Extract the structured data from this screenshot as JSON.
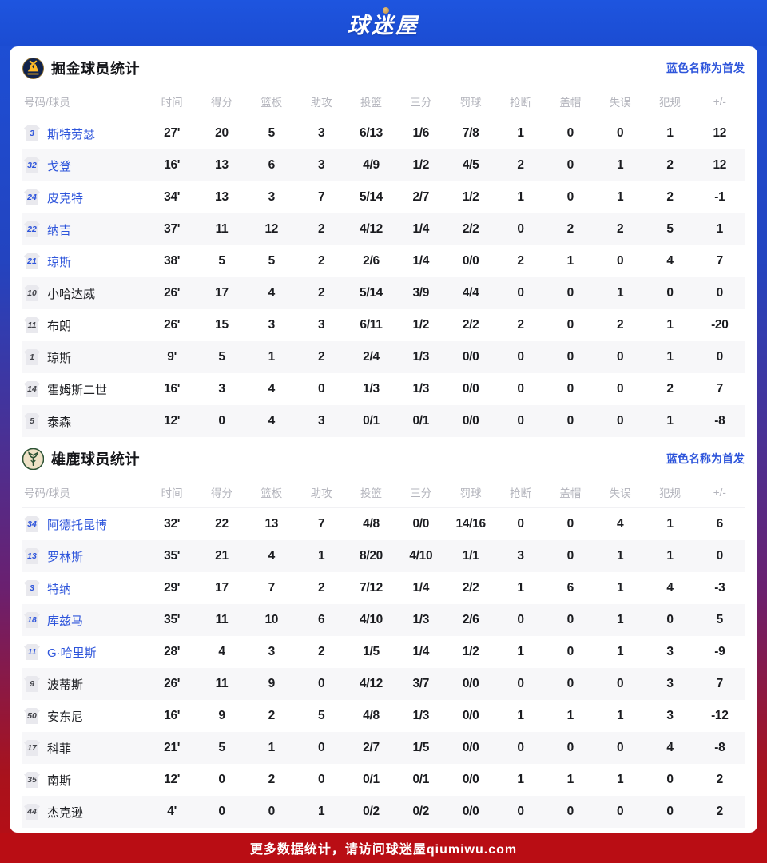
{
  "header": {
    "logo_text": "球迷屋"
  },
  "colors": {
    "accent_blue": "#2e55db",
    "banner_blue": "#1b4cd2",
    "footer_red": "#b90d14",
    "nuggets_navy": "#10224b",
    "nuggets_gold": "#fdb927",
    "bucks_green": "#2c5234",
    "bucks_cream": "#eee1c6"
  },
  "columns": [
    "号码/球员",
    "时间",
    "得分",
    "篮板",
    "助攻",
    "投篮",
    "三分",
    "罚球",
    "抢断",
    "盖帽",
    "失误",
    "犯规",
    "+/-"
  ],
  "tables": [
    {
      "team": "nuggets",
      "title": "掘金球员统计",
      "legend": "蓝色名称为首发",
      "players": [
        {
          "num": "3",
          "name": "斯特劳瑟",
          "starter": true,
          "stats": [
            "27'",
            "20",
            "5",
            "3",
            "6/13",
            "1/6",
            "7/8",
            "1",
            "0",
            "0",
            "1",
            "12"
          ]
        },
        {
          "num": "32",
          "name": "戈登",
          "starter": true,
          "stats": [
            "16'",
            "13",
            "6",
            "3",
            "4/9",
            "1/2",
            "4/5",
            "2",
            "0",
            "1",
            "2",
            "12"
          ]
        },
        {
          "num": "24",
          "name": "皮克特",
          "starter": true,
          "stats": [
            "34'",
            "13",
            "3",
            "7",
            "5/14",
            "2/7",
            "1/2",
            "1",
            "0",
            "1",
            "2",
            "-1"
          ]
        },
        {
          "num": "22",
          "name": "纳吉",
          "starter": true,
          "stats": [
            "37'",
            "11",
            "12",
            "2",
            "4/12",
            "1/4",
            "2/2",
            "0",
            "2",
            "2",
            "5",
            "1"
          ]
        },
        {
          "num": "21",
          "name": "琼斯",
          "starter": true,
          "stats": [
            "38'",
            "5",
            "5",
            "2",
            "2/6",
            "1/4",
            "0/0",
            "2",
            "1",
            "0",
            "4",
            "7"
          ]
        },
        {
          "num": "10",
          "name": "小哈达威",
          "starter": false,
          "stats": [
            "26'",
            "17",
            "4",
            "2",
            "5/14",
            "3/9",
            "4/4",
            "0",
            "0",
            "1",
            "0",
            "0"
          ]
        },
        {
          "num": "11",
          "name": "布朗",
          "starter": false,
          "stats": [
            "26'",
            "15",
            "3",
            "3",
            "6/11",
            "1/2",
            "2/2",
            "2",
            "0",
            "2",
            "1",
            "-20"
          ]
        },
        {
          "num": "1",
          "name": "琼斯",
          "starter": false,
          "stats": [
            "9'",
            "5",
            "1",
            "2",
            "2/4",
            "1/3",
            "0/0",
            "0",
            "0",
            "0",
            "1",
            "0"
          ]
        },
        {
          "num": "14",
          "name": "霍姆斯二世",
          "starter": false,
          "stats": [
            "16'",
            "3",
            "4",
            "0",
            "1/3",
            "1/3",
            "0/0",
            "0",
            "0",
            "0",
            "2",
            "7"
          ]
        },
        {
          "num": "5",
          "name": "泰森",
          "starter": false,
          "stats": [
            "12'",
            "0",
            "4",
            "3",
            "0/1",
            "0/1",
            "0/0",
            "0",
            "0",
            "0",
            "1",
            "-8"
          ]
        }
      ]
    },
    {
      "team": "bucks",
      "title": "雄鹿球员统计",
      "legend": "蓝色名称为首发",
      "players": [
        {
          "num": "34",
          "name": "阿德托昆博",
          "starter": true,
          "stats": [
            "32'",
            "22",
            "13",
            "7",
            "4/8",
            "0/0",
            "14/16",
            "0",
            "0",
            "4",
            "1",
            "6"
          ]
        },
        {
          "num": "13",
          "name": "罗林斯",
          "starter": true,
          "stats": [
            "35'",
            "21",
            "4",
            "1",
            "8/20",
            "4/10",
            "1/1",
            "3",
            "0",
            "1",
            "1",
            "0"
          ]
        },
        {
          "num": "3",
          "name": "特纳",
          "starter": true,
          "stats": [
            "29'",
            "17",
            "7",
            "2",
            "7/12",
            "1/4",
            "2/2",
            "1",
            "6",
            "1",
            "4",
            "-3"
          ]
        },
        {
          "num": "18",
          "name": "库兹马",
          "starter": true,
          "stats": [
            "35'",
            "11",
            "10",
            "6",
            "4/10",
            "1/3",
            "2/6",
            "0",
            "0",
            "1",
            "0",
            "5"
          ]
        },
        {
          "num": "11",
          "name": "G·哈里斯",
          "starter": true,
          "stats": [
            "28'",
            "4",
            "3",
            "2",
            "1/5",
            "1/4",
            "1/2",
            "1",
            "0",
            "1",
            "3",
            "-9"
          ]
        },
        {
          "num": "9",
          "name": "波蒂斯",
          "starter": false,
          "stats": [
            "26'",
            "11",
            "9",
            "0",
            "4/12",
            "3/7",
            "0/0",
            "0",
            "0",
            "0",
            "3",
            "7"
          ]
        },
        {
          "num": "50",
          "name": "安东尼",
          "starter": false,
          "stats": [
            "16'",
            "9",
            "2",
            "5",
            "4/8",
            "1/3",
            "0/0",
            "1",
            "1",
            "1",
            "3",
            "-12"
          ]
        },
        {
          "num": "17",
          "name": "科菲",
          "starter": false,
          "stats": [
            "21'",
            "5",
            "1",
            "0",
            "2/7",
            "1/5",
            "0/0",
            "0",
            "0",
            "0",
            "4",
            "-8"
          ]
        },
        {
          "num": "35",
          "name": "南斯",
          "starter": false,
          "stats": [
            "12'",
            "0",
            "2",
            "0",
            "0/1",
            "0/1",
            "0/0",
            "1",
            "1",
            "1",
            "0",
            "2"
          ]
        },
        {
          "num": "44",
          "name": "杰克逊",
          "starter": false,
          "stats": [
            "4'",
            "0",
            "0",
            "1",
            "0/2",
            "0/2",
            "0/0",
            "0",
            "0",
            "0",
            "0",
            "2"
          ]
        }
      ]
    }
  ],
  "footer": {
    "text": "更多数据统计，请访问球迷屋qiumiwu.com"
  }
}
